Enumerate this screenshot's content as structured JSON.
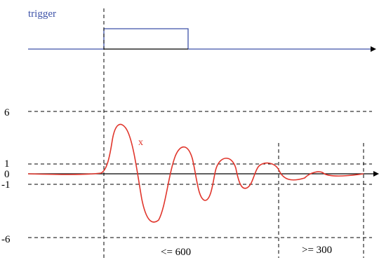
{
  "trigger": {
    "label": "trigger",
    "color": "#3d52a8"
  },
  "signal": {
    "name": "x",
    "color": "#e0352b"
  },
  "y_ticks": [
    "6",
    "1",
    "0",
    "-1",
    "-6"
  ],
  "intervals": {
    "first": "<= 600",
    "second": ">= 300"
  },
  "colors": {
    "axis": "#000000",
    "trigger_line": "#3d52a8",
    "signal": "#e0352b"
  }
}
